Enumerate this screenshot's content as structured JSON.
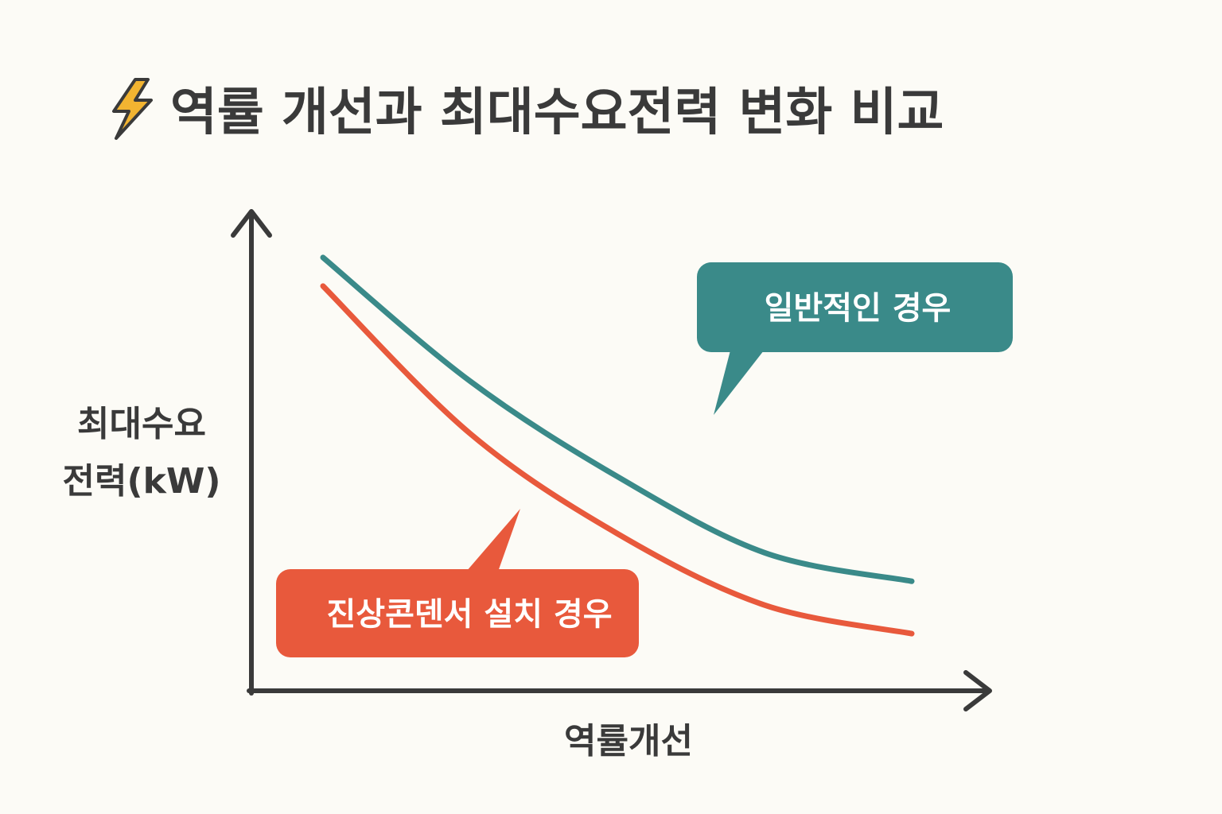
{
  "title": "역률 개선과 최대수요전력 변화 비교",
  "title_icon": "lightning-bolt-icon",
  "colors": {
    "background": "#fcfbf6",
    "text": "#3a3a3a",
    "axis": "#3a3a3a",
    "general": "#3a8a89",
    "capacitor": "#e8593c",
    "icon": "#f2b431"
  },
  "chart_data": {
    "type": "line",
    "xlabel": "역률개선",
    "ylabel_lines": [
      "최대수요",
      "전력(kW)"
    ],
    "ylabel": "최대수요 전력(kW)",
    "xlim": [
      0,
      1
    ],
    "ylim": [
      0,
      1
    ],
    "x": [
      0,
      0.25,
      0.5,
      0.75,
      1.0
    ],
    "grid": false,
    "legend": "callouts",
    "series": [
      {
        "name": "일반적인 경우",
        "color": "#3a8a89",
        "values": [
          0.91,
          0.65,
          0.45,
          0.29,
          0.23
        ]
      },
      {
        "name": "진상콘덴서 설치 경우",
        "color": "#e8593c",
        "values": [
          0.85,
          0.54,
          0.33,
          0.18,
          0.12
        ]
      }
    ]
  }
}
